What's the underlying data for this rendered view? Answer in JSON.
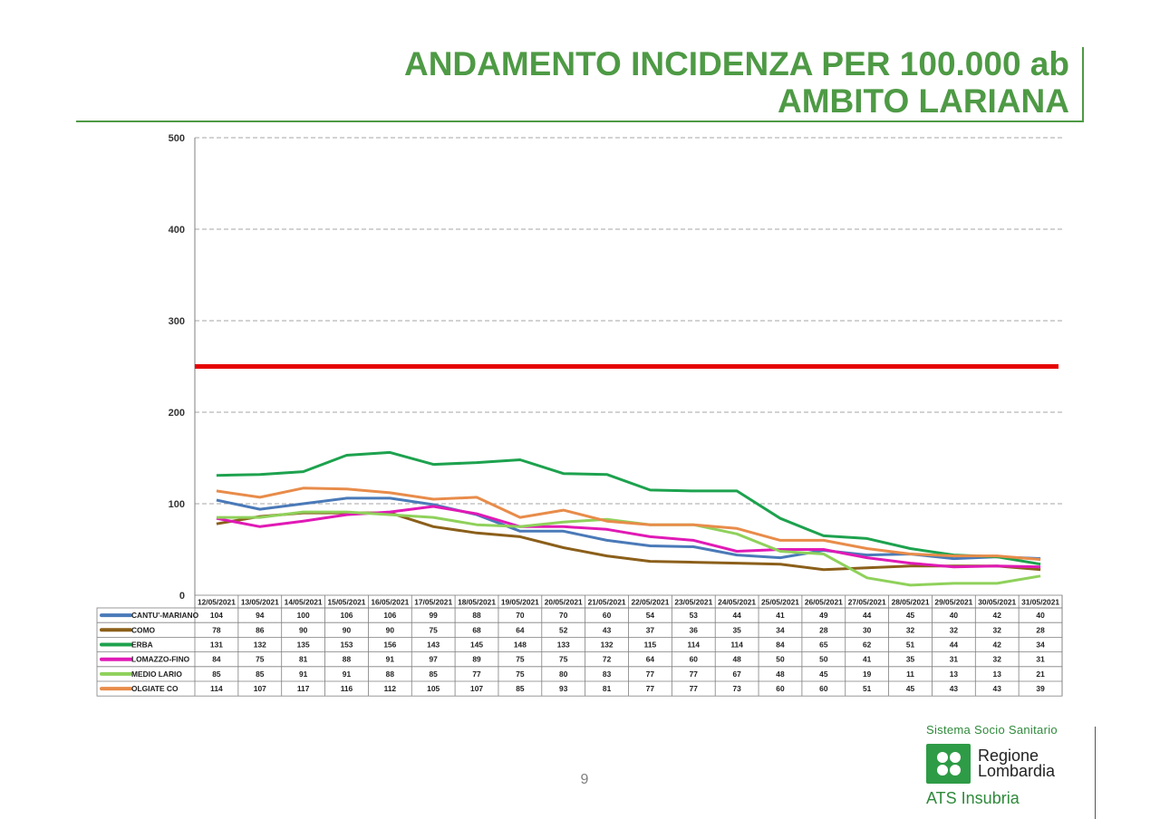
{
  "header": {
    "title_line1": "ANDAMENTO INCIDENZA PER 100.000 ab",
    "title_line2": "AMBITO LARIANA"
  },
  "colors": {
    "title": "#4e9a45",
    "threshold": "#e60000",
    "grid": "#a6a6a6"
  },
  "chart_data": {
    "type": "line",
    "title": "ANDAMENTO INCIDENZA PER 100.000 ab AMBITO LARIANA",
    "ylim": [
      0,
      500
    ],
    "yticks": [
      0,
      100,
      200,
      300,
      400,
      500
    ],
    "grid": true,
    "legend": "data-table-below",
    "threshold": {
      "value": 250,
      "color": "#e60000"
    },
    "x": [
      "12/05/2021",
      "13/05/2021",
      "14/05/2021",
      "15/05/2021",
      "16/05/2021",
      "17/05/2021",
      "18/05/2021",
      "19/05/2021",
      "20/05/2021",
      "21/05/2021",
      "22/05/2021",
      "23/05/2021",
      "24/05/2021",
      "25/05/2021",
      "26/05/2021",
      "27/05/2021",
      "28/05/2021",
      "29/05/2021",
      "30/05/2021",
      "31/05/2021"
    ],
    "series": [
      {
        "name": "CANTU'-MARIANO",
        "color": "#4a7ab8",
        "values": [
          104,
          94,
          100,
          106,
          106,
          99,
          88,
          70,
          70,
          60,
          54,
          53,
          44,
          41,
          49,
          44,
          45,
          40,
          42,
          40
        ]
      },
      {
        "name": "COMO",
        "color": "#8b5f1a",
        "values": [
          78,
          86,
          90,
          90,
          90,
          75,
          68,
          64,
          52,
          43,
          37,
          36,
          35,
          34,
          28,
          30,
          32,
          32,
          32,
          28
        ]
      },
      {
        "name": "ERBA",
        "color": "#1da24e",
        "values": [
          131,
          132,
          135,
          153,
          156,
          143,
          145,
          148,
          133,
          132,
          115,
          114,
          114,
          84,
          65,
          62,
          51,
          44,
          42,
          34
        ]
      },
      {
        "name": "LOMAZZO-FINO",
        "color": "#e01ab5",
        "values": [
          84,
          75,
          81,
          88,
          91,
          97,
          89,
          75,
          75,
          72,
          64,
          60,
          48,
          50,
          50,
          41,
          35,
          31,
          32,
          31
        ]
      },
      {
        "name": "MEDIO LARIO",
        "color": "#8fd15b",
        "values": [
          85,
          85,
          91,
          91,
          88,
          85,
          77,
          75,
          80,
          83,
          77,
          77,
          67,
          48,
          45,
          19,
          11,
          13,
          13,
          21
        ]
      },
      {
        "name": "OLGIATE CO",
        "color": "#e88c4a",
        "values": [
          114,
          107,
          117,
          116,
          112,
          105,
          107,
          85,
          93,
          81,
          77,
          77,
          73,
          60,
          60,
          51,
          45,
          43,
          43,
          39
        ]
      }
    ]
  },
  "footer": {
    "page_number": "9",
    "logo_sistema": "Sistema Socio Sanitario",
    "logo_regione": "Regione",
    "logo_lombardia": "Lombardia",
    "logo_ats": "ATS Insubria"
  }
}
